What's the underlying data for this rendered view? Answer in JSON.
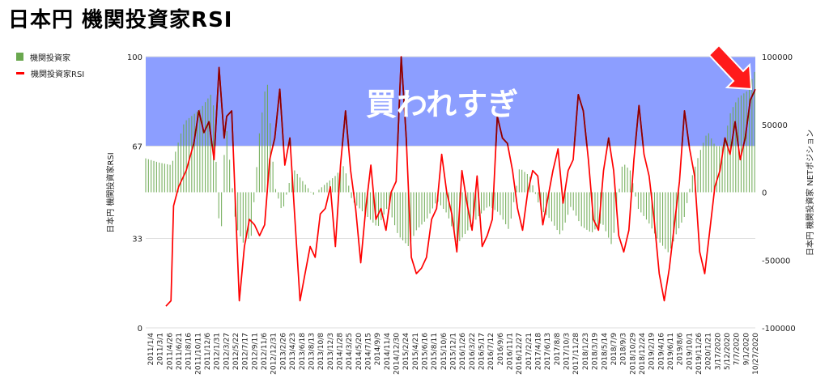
{
  "title": "日本円 機関投資家RSI",
  "chart_data": {
    "type": "bar+line",
    "title": "日本円 機関投資家RSI",
    "legend": [
      {
        "name": "機関投資家",
        "kind": "bar",
        "color": "#6aa84f"
      },
      {
        "name": "機関投資家RSI",
        "kind": "line",
        "color": "#ff0000"
      }
    ],
    "legend_position": "left",
    "y_left_label": "日本円 機関投資家RSI",
    "y_right_label": "日本円 機関投資家 NETポジション",
    "y_left_ticks": [
      "100",
      "67",
      "33",
      "0"
    ],
    "y_right_ticks": [
      "100000",
      "50000",
      "0",
      "-50000",
      "-100000"
    ],
    "y_left_range": [
      0,
      100
    ],
    "y_right_range": [
      -100000,
      100000
    ],
    "overbought_band": {
      "from": 67,
      "to": 100,
      "color": "#8c9eff",
      "label": "買われすぎ"
    },
    "x_tick_labels": [
      "2011/1/4",
      "2011/3/1",
      "2011/4/26",
      "2011/6/21",
      "2011/8/16",
      "2011/10/11",
      "2011/12/6",
      "2012/1/31",
      "2012/3/27",
      "2012/5/22",
      "2012/7/17",
      "2012/9/11",
      "2012/11/6",
      "2012/12/31",
      "2013/2/26",
      "2013/4/23",
      "2013/6/18",
      "2013/8/13",
      "2013/10/8",
      "2013/12/3",
      "2014/1/28",
      "2014/3/25",
      "2014/5/20",
      "2014/7/15",
      "2014/9/9",
      "2014/11/4",
      "2014/12/30",
      "2015/2/24",
      "2015/4/21",
      "2015/6/16",
      "2015/8/11",
      "2015/10/6",
      "2015/12/1",
      "2016/1/26",
      "2016/3/22",
      "2016/5/17",
      "2016/7/12",
      "2016/9/6",
      "2016/11/1",
      "2016/12/27",
      "2017/2/21",
      "2017/4/18",
      "2017/6/13",
      "2017/8/8",
      "2017/10/3",
      "2017/11/28",
      "2018/1/23",
      "2018/3/19",
      "2018/5/14",
      "2018/7/9",
      "2018/9/3",
      "2018/10/29",
      "2018/12/24",
      "2019/2/19",
      "2019/4/16",
      "2019/6/11",
      "2019/8/6",
      "2019/10/1",
      "2019/11/26",
      "2020/1/21",
      "3/17/2020",
      "5/12/2020",
      "7/7/2020",
      "9/1/2020",
      "10/27/2020"
    ],
    "net_position": [
      -2,
      25000,
      8,
      22000,
      18,
      20000,
      28,
      52000,
      40,
      61000,
      50,
      74000,
      56,
      -45000,
      60,
      55000,
      68,
      -25000,
      74,
      -38000,
      80,
      -32000,
      86,
      42000,
      92,
      86000,
      98,
      5000,
      104,
      -15000,
      112,
      18000,
      120,
      8000,
      128,
      -2000,
      136,
      5000,
      145,
      12000,
      152,
      20000,
      158,
      -6000,
      164,
      -12000,
      170,
      -18000,
      178,
      -26000,
      186,
      -10000,
      194,
      -32000,
      202,
      -40000,
      208,
      -28000,
      216,
      -20000,
      224,
      -6000,
      232,
      -16000,
      240,
      -38000,
      248,
      -28000,
      256,
      -18000,
      264,
      -10000,
      272,
      -15000,
      280,
      -28000,
      288,
      18000,
      296,
      12000,
      304,
      -12000,
      312,
      -20000,
      320,
      -32000,
      328,
      -10000,
      336,
      -25000,
      344,
      -30000,
      352,
      -22000,
      360,
      -40000,
      368,
      22000,
      374,
      16000,
      380,
      -12000,
      388,
      -22000,
      396,
      -36000,
      404,
      -45000,
      410,
      -30000,
      416,
      -18000,
      422,
      12000,
      428,
      30000,
      434,
      45000,
      440,
      34000,
      446,
      34000,
      452,
      60000,
      458,
      70000,
      465,
      75000,
      471,
      90000
    ],
    "rsi": [
      6,
      8,
      10,
      10,
      12,
      45,
      16,
      52,
      22,
      58,
      28,
      68,
      32,
      80,
      36,
      72,
      40,
      76,
      44,
      62,
      48,
      96,
      52,
      70,
      54,
      78,
      58,
      80,
      64,
      10,
      68,
      30,
      72,
      40,
      76,
      38,
      80,
      34,
      84,
      38,
      88,
      62,
      92,
      70,
      96,
      88,
      100,
      60,
      104,
      70,
      108,
      40,
      112,
      10,
      116,
      20,
      120,
      30,
      124,
      26,
      128,
      42,
      132,
      44,
      136,
      52,
      140,
      30,
      144,
      60,
      148,
      80,
      152,
      58,
      156,
      44,
      160,
      24,
      164,
      44,
      168,
      60,
      172,
      40,
      176,
      44,
      180,
      36,
      184,
      50,
      188,
      54,
      192,
      100,
      196,
      70,
      200,
      26,
      204,
      20,
      208,
      22,
      212,
      26,
      216,
      40,
      220,
      44,
      224,
      64,
      228,
      50,
      232,
      42,
      236,
      28,
      240,
      58,
      244,
      46,
      248,
      36,
      252,
      56,
      256,
      30,
      260,
      34,
      264,
      40,
      268,
      78,
      272,
      70,
      276,
      68,
      280,
      58,
      284,
      44,
      288,
      36,
      292,
      50,
      296,
      58,
      300,
      56,
      304,
      38,
      308,
      48,
      312,
      58,
      316,
      66,
      320,
      46,
      324,
      58,
      328,
      62,
      332,
      86,
      336,
      80,
      340,
      62,
      344,
      40,
      348,
      36,
      352,
      58,
      356,
      70,
      360,
      58,
      364,
      34,
      368,
      28,
      372,
      36,
      376,
      62,
      380,
      82,
      384,
      64,
      388,
      56,
      392,
      40,
      396,
      20,
      400,
      10,
      404,
      22,
      408,
      38,
      412,
      54,
      416,
      80,
      420,
      66,
      424,
      56,
      428,
      28,
      432,
      20,
      436,
      36,
      440,
      52,
      444,
      58,
      448,
      70,
      452,
      64,
      456,
      76,
      460,
      62,
      464,
      70,
      468,
      84,
      472,
      88
    ]
  }
}
